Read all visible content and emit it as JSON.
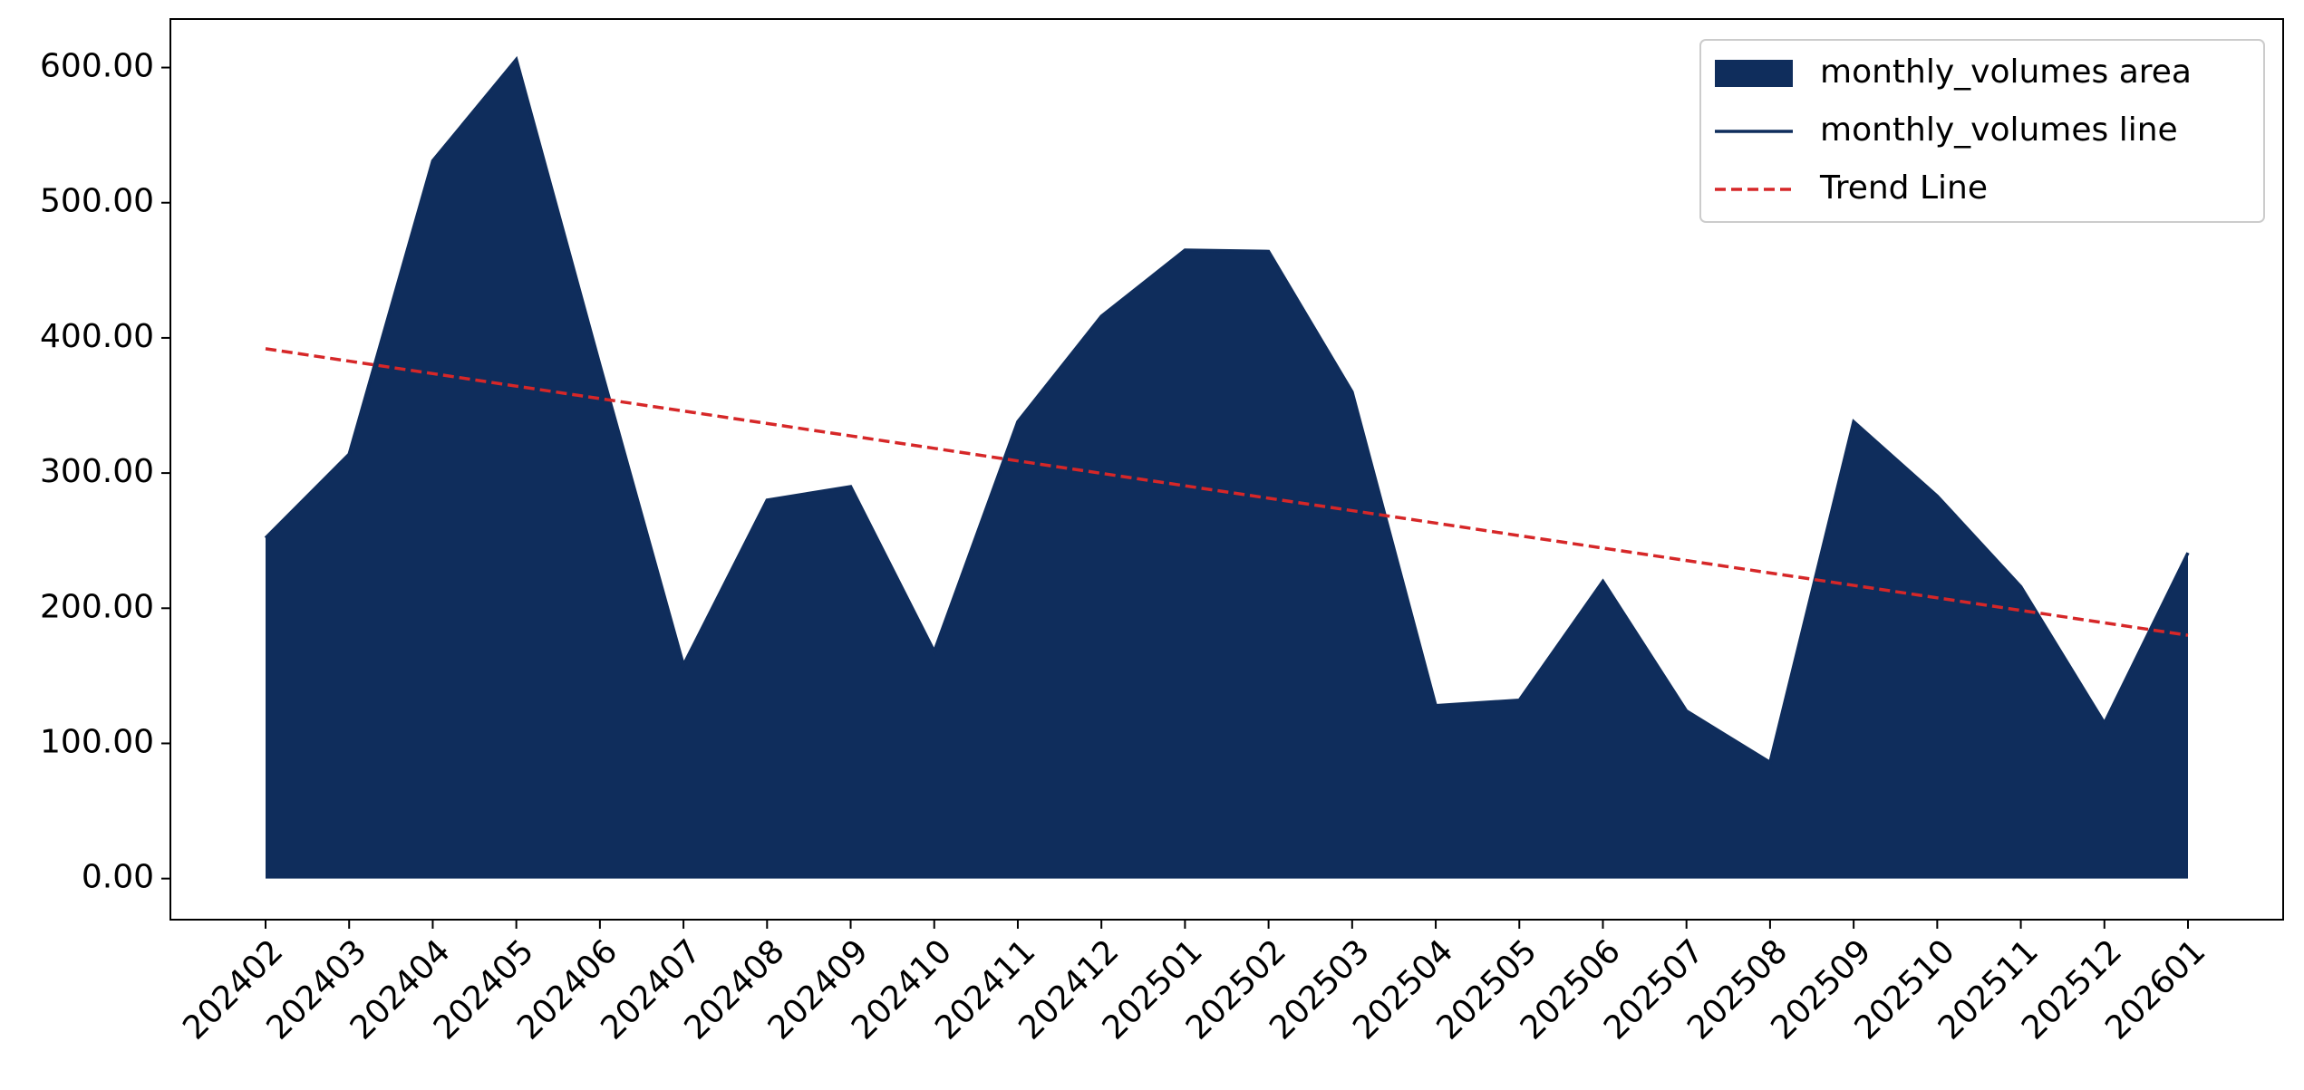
{
  "chart_data": {
    "type": "area",
    "categories": [
      "202402",
      "202403",
      "202404",
      "202405",
      "202406",
      "202407",
      "202408",
      "202409",
      "202410",
      "202411",
      "202412",
      "202501",
      "202502",
      "202503",
      "202504",
      "202505",
      "202506",
      "202507",
      "202508",
      "202509",
      "202510",
      "202511",
      "202512",
      "202601"
    ],
    "series": [
      {
        "name": "monthly_volumes area",
        "type": "area",
        "color": "#0f2d5c",
        "values": [
          252,
          314,
          531,
          606,
          380,
          158,
          280,
          290,
          168,
          338,
          416,
          465,
          464,
          360,
          128,
          132,
          220,
          124,
          86,
          338,
          283,
          216,
          115,
          241
        ]
      },
      {
        "name": "monthly_volumes line",
        "type": "line",
        "color": "#0f2d5c",
        "linestyle": "solid",
        "values": [
          252,
          314,
          531,
          606,
          380,
          158,
          280,
          290,
          168,
          338,
          416,
          465,
          464,
          360,
          128,
          132,
          220,
          124,
          86,
          338,
          283,
          216,
          115,
          241
        ]
      },
      {
        "name": "Trend Line",
        "type": "line",
        "color": "#d62728",
        "linestyle": "dashed",
        "values": [
          392,
          382.8,
          373.6,
          364.3,
          355.1,
          345.9,
          336.7,
          327.5,
          318.3,
          309.0,
          299.8,
          290.6,
          281.4,
          272.2,
          263.0,
          253.7,
          244.5,
          235.3,
          226.1,
          216.9,
          207.7,
          198.4,
          189.2,
          180
        ]
      }
    ],
    "ylim": [
      -30.4,
      635.9
    ],
    "yticks": [
      {
        "value": 0,
        "label": "0.00"
      },
      {
        "value": 100,
        "label": "100.00"
      },
      {
        "value": 200,
        "label": "200.00"
      },
      {
        "value": 300,
        "label": "300.00"
      },
      {
        "value": 400,
        "label": "400.00"
      },
      {
        "value": 500,
        "label": "500.00"
      },
      {
        "value": 600,
        "label": "600.00"
      }
    ],
    "grid": false,
    "legend": "upper right"
  }
}
